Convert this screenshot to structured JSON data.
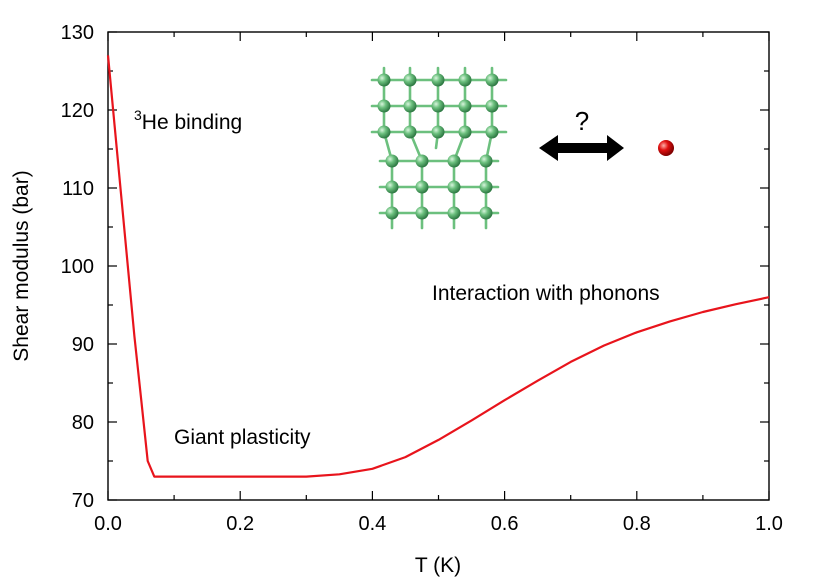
{
  "chart_data": {
    "type": "line",
    "title": "",
    "xlabel": "T (K)",
    "ylabel": "Shear modulus (bar)",
    "xlim": [
      0.0,
      1.0
    ],
    "ylim": [
      70,
      130
    ],
    "xticks": [
      "0.0",
      "0.2",
      "0.4",
      "0.6",
      "0.8",
      "1.0"
    ],
    "xtick_values": [
      0.0,
      0.2,
      0.4,
      0.6,
      0.8,
      1.0
    ],
    "yticks": [
      "70",
      "80",
      "90",
      "100",
      "110",
      "120",
      "130"
    ],
    "ytick_values": [
      70,
      80,
      90,
      100,
      110,
      120,
      130
    ],
    "grid": false,
    "series": [
      {
        "name": "shear modulus",
        "color": "#e8141c",
        "x": [
          0.0,
          0.01,
          0.02,
          0.03,
          0.04,
          0.05,
          0.06,
          0.07,
          0.1,
          0.2,
          0.3,
          0.35,
          0.4,
          0.45,
          0.5,
          0.55,
          0.6,
          0.65,
          0.7,
          0.75,
          0.8,
          0.85,
          0.9,
          0.95,
          1.0
        ],
        "y": [
          127.0,
          118.0,
          109.0,
          100.0,
          91.0,
          83.0,
          75.0,
          73.0,
          73.0,
          73.0,
          73.0,
          73.3,
          74.0,
          75.5,
          77.7,
          80.2,
          82.8,
          85.3,
          87.7,
          89.8,
          91.5,
          92.9,
          94.1,
          95.1,
          96.0
        ]
      }
    ],
    "annotations": {
      "he_binding_sup": "3",
      "he_binding": "He binding",
      "giant_plasticity": "Giant plasticity",
      "interaction": "Interaction with phonons",
      "question": "?"
    }
  },
  "colors": {
    "curve": "#e8141c",
    "atoms": "#5aaf6e",
    "impurity": "#e01010",
    "arrow": "#000000"
  },
  "icons": [
    "crystal-lattice-icon",
    "double-arrow-icon",
    "impurity-atom-icon"
  ]
}
